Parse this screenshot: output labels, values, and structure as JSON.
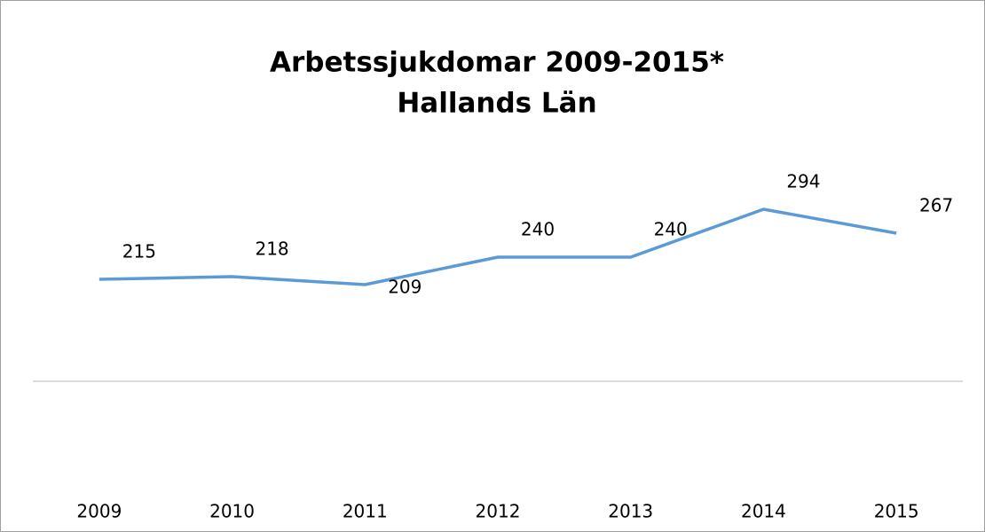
{
  "chart_data": {
    "type": "line",
    "title": "Arbetssjukdomar 2009-2015*",
    "subtitle": "Hallands Län",
    "categories": [
      "2009",
      "2010",
      "2011",
      "2012",
      "2013",
      "2014",
      "2015"
    ],
    "values": [
      215,
      218,
      209,
      240,
      240,
      294,
      267
    ],
    "color": "#5b9bd5",
    "ylim": [
      100,
      350
    ]
  }
}
